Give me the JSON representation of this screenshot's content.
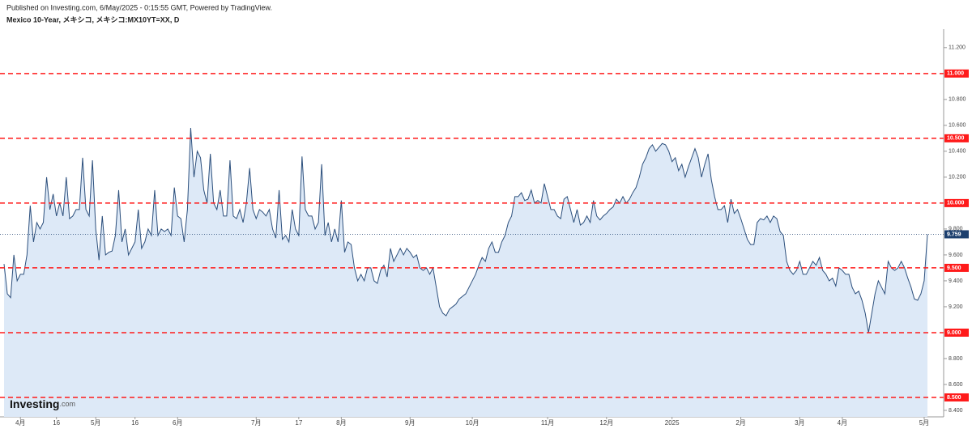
{
  "header": {
    "published": "Published on Investing.com, 6/May/2025 - 0:15:55 GMT, Powered by TradingView."
  },
  "logo": {
    "name": "Investing",
    "suffix": ".com"
  },
  "chart_data": {
    "type": "line",
    "title": "Mexico 10-Year, メキシコ, メキシコ:MX10YT=XX, D",
    "color": "#2c4f7c",
    "fill_color": "#dde9f7",
    "categories": [
      null,
      null,
      null,
      null,
      null,
      "4月",
      null,
      null,
      null,
      null,
      null,
      null,
      null,
      null,
      null,
      null,
      "16",
      null,
      null,
      null,
      null,
      null,
      null,
      null,
      null,
      null,
      null,
      null,
      "5月",
      null,
      null,
      null,
      null,
      null,
      null,
      null,
      null,
      null,
      null,
      null,
      "16",
      null,
      null,
      null,
      null,
      null,
      null,
      null,
      null,
      null,
      null,
      null,
      null,
      "6月",
      null,
      null,
      null,
      null,
      null,
      null,
      null,
      null,
      null,
      null,
      null,
      null,
      null,
      null,
      null,
      null,
      null,
      null,
      null,
      null,
      null,
      null,
      null,
      "7月",
      null,
      null,
      null,
      null,
      null,
      null,
      null,
      null,
      null,
      null,
      null,
      null,
      "17",
      null,
      null,
      null,
      null,
      null,
      null,
      null,
      null,
      null,
      null,
      null,
      null,
      "8月",
      null,
      null,
      null,
      null,
      null,
      null,
      null,
      null,
      null,
      null,
      null,
      null,
      null,
      null,
      null,
      null,
      null,
      null,
      null,
      null,
      "9月",
      null,
      null,
      null,
      null,
      null,
      null,
      null,
      null,
      null,
      null,
      null,
      null,
      null,
      null,
      null,
      null,
      null,
      null,
      "10月",
      null,
      null,
      null,
      null,
      null,
      null,
      null,
      null,
      null,
      null,
      null,
      null,
      null,
      null,
      null,
      null,
      null,
      null,
      null,
      null,
      null,
      null,
      "11月",
      null,
      null,
      null,
      null,
      null,
      null,
      null,
      null,
      null,
      null,
      null,
      null,
      null,
      null,
      null,
      null,
      null,
      "12月",
      null,
      null,
      null,
      null,
      null,
      null,
      null,
      null,
      null,
      null,
      null,
      null,
      null,
      null,
      null,
      null,
      null,
      null,
      null,
      "2025",
      null,
      null,
      null,
      null,
      null,
      null,
      null,
      null,
      null,
      null,
      null,
      null,
      null,
      null,
      null,
      null,
      null,
      null,
      null,
      null,
      "2月",
      null,
      null,
      null,
      null,
      null,
      null,
      null,
      null,
      null,
      null,
      null,
      null,
      null,
      null,
      null,
      null,
      null,
      "3月",
      null,
      null,
      null,
      null,
      null,
      null,
      null,
      null,
      null,
      null,
      null,
      null,
      "4月",
      null,
      null,
      null,
      null,
      null,
      null,
      null,
      null,
      null,
      null,
      null,
      null,
      null,
      null,
      null,
      null,
      null,
      null,
      null,
      null,
      null,
      null,
      null,
      null,
      "5月",
      null
    ],
    "values": [
      9.53,
      9.3,
      9.27,
      9.6,
      9.4,
      9.45,
      9.45,
      9.6,
      9.98,
      9.7,
      9.85,
      9.8,
      9.85,
      10.2,
      9.95,
      10.07,
      9.9,
      10.0,
      9.9,
      10.2,
      9.88,
      9.9,
      9.95,
      9.95,
      10.35,
      9.95,
      9.9,
      10.33,
      9.8,
      9.56,
      9.9,
      9.6,
      9.62,
      9.63,
      9.75,
      10.1,
      9.7,
      9.8,
      9.6,
      9.65,
      9.7,
      9.95,
      9.65,
      9.7,
      9.8,
      9.75,
      10.1,
      9.75,
      9.8,
      9.78,
      9.8,
      9.75,
      10.12,
      9.9,
      9.88,
      9.7,
      9.95,
      10.58,
      10.2,
      10.4,
      10.35,
      10.1,
      10.0,
      10.38,
      10.0,
      9.95,
      10.1,
      9.9,
      9.9,
      10.33,
      9.9,
      9.88,
      9.95,
      9.85,
      10.0,
      10.27,
      9.95,
      9.88,
      9.95,
      9.93,
      9.9,
      9.95,
      9.8,
      9.73,
      10.1,
      9.72,
      9.75,
      9.7,
      9.95,
      9.8,
      9.75,
      10.36,
      9.95,
      9.9,
      9.9,
      9.8,
      9.85,
      10.3,
      9.75,
      9.85,
      9.7,
      9.8,
      9.7,
      10.02,
      9.62,
      9.7,
      9.68,
      9.5,
      9.4,
      9.45,
      9.4,
      9.5,
      9.5,
      9.4,
      9.38,
      9.48,
      9.52,
      9.43,
      9.65,
      9.55,
      9.6,
      9.65,
      9.6,
      9.65,
      9.62,
      9.58,
      9.6,
      9.5,
      9.48,
      9.5,
      9.45,
      9.5,
      9.35,
      9.2,
      9.15,
      9.13,
      9.18,
      9.2,
      9.22,
      9.26,
      9.28,
      9.3,
      9.35,
      9.4,
      9.45,
      9.52,
      9.58,
      9.55,
      9.65,
      9.7,
      9.62,
      9.62,
      9.7,
      9.75,
      9.85,
      9.9,
      10.05,
      10.05,
      10.08,
      10.02,
      10.03,
      10.1,
      10.0,
      10.02,
      10.0,
      10.15,
      10.05,
      9.95,
      9.95,
      9.9,
      9.88,
      10.03,
      10.05,
      9.95,
      9.85,
      9.95,
      9.83,
      9.85,
      9.9,
      9.85,
      10.02,
      9.9,
      9.87,
      9.9,
      9.92,
      9.95,
      9.97,
      10.03,
      10.0,
      10.05,
      10.0,
      10.03,
      10.08,
      10.12,
      10.2,
      10.3,
      10.35,
      10.42,
      10.45,
      10.4,
      10.43,
      10.46,
      10.45,
      10.4,
      10.32,
      10.35,
      10.25,
      10.3,
      10.2,
      10.28,
      10.35,
      10.42,
      10.35,
      10.2,
      10.3,
      10.38,
      10.18,
      10.05,
      9.95,
      9.95,
      9.98,
      9.85,
      10.03,
      9.92,
      9.95,
      9.88,
      9.8,
      9.72,
      9.68,
      9.68,
      9.85,
      9.88,
      9.87,
      9.9,
      9.85,
      9.9,
      9.88,
      9.78,
      9.75,
      9.55,
      9.48,
      9.45,
      9.48,
      9.55,
      9.45,
      9.45,
      9.5,
      9.55,
      9.52,
      9.58,
      9.48,
      9.45,
      9.4,
      9.42,
      9.36,
      9.5,
      9.48,
      9.45,
      9.45,
      9.35,
      9.3,
      9.32,
      9.25,
      9.15,
      9.0,
      9.15,
      9.3,
      9.4,
      9.35,
      9.3,
      9.55,
      9.5,
      9.48,
      9.5,
      9.55,
      9.5,
      9.42,
      9.35,
      9.26,
      9.25,
      9.3,
      9.4,
      9.759
    ],
    "ylim": [
      8.35,
      11.33
    ],
    "yticks": [
      {
        "value": 8.4,
        "label": "8.400"
      },
      {
        "value": 8.6,
        "label": "8.600"
      },
      {
        "value": 8.8,
        "label": "8.800"
      },
      {
        "value": 9.2,
        "label": "9.200"
      },
      {
        "value": 9.4,
        "label": "9.400"
      },
      {
        "value": 9.6,
        "label": "9.600"
      },
      {
        "value": 9.8,
        "label": "9.800"
      },
      {
        "value": 10.2,
        "label": "10.200"
      },
      {
        "value": 10.4,
        "label": "10.400"
      },
      {
        "value": 10.6,
        "label": "10.600"
      },
      {
        "value": 10.8,
        "label": "10.800"
      },
      {
        "value": 11.2,
        "label": "11.200"
      }
    ],
    "levels": [
      {
        "value": 11,
        "label": "11.000"
      },
      {
        "value": 10.5,
        "label": "10.500"
      },
      {
        "value": 10,
        "label": "10.000"
      },
      {
        "value": 9.5,
        "label": "9.500"
      },
      {
        "value": 9,
        "label": "9.000"
      },
      {
        "value": 8.5,
        "label": "8.500"
      }
    ],
    "levels_color": "#ff1a1a",
    "last_value": 9.759,
    "last_color": "#1c3f6e"
  }
}
